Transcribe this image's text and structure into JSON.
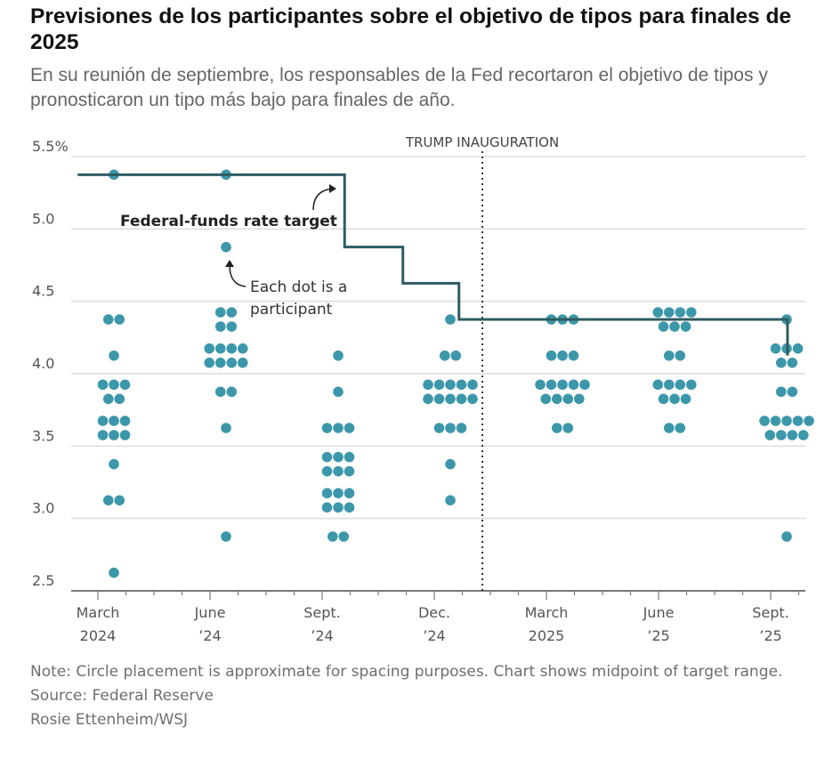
{
  "header": {
    "title": "Previsiones de los participantes sobre el objetivo de tipos para finales de 2025",
    "subtitle": "En su reunión de septiembre, los responsables de la Fed recortaron el objetivo de tipos y pronosticaron un tipo más bajo para finales de año."
  },
  "footer": {
    "note": "Note: Circle placement is approximate for spacing purposes. Chart shows midpoint of target range.",
    "source": "Source: Federal Reserve",
    "credit": "Rosie Ettenheim/WSJ"
  },
  "chart_data": {
    "type": "scatter",
    "ylim": [
      2.5,
      5.5
    ],
    "yticks": [
      {
        "value": 2.5,
        "label": "2.5"
      },
      {
        "value": 3.0,
        "label": "3.0"
      },
      {
        "value": 3.5,
        "label": "3.5"
      },
      {
        "value": 4.0,
        "label": "4.0"
      },
      {
        "value": 4.5,
        "label": "4.5"
      },
      {
        "value": 5.0,
        "label": "5.0"
      },
      {
        "value": 5.5,
        "label": "5.5%"
      }
    ],
    "meetings": [
      {
        "label": [
          "March",
          "2024"
        ],
        "dots": [
          5.375,
          4.375,
          4.375,
          4.125,
          3.875,
          3.875,
          3.875,
          3.875,
          3.875,
          3.625,
          3.625,
          3.625,
          3.625,
          3.625,
          3.625,
          3.375,
          3.125,
          3.125,
          2.625
        ]
      },
      {
        "label": [
          "June",
          "’24"
        ],
        "dots": [
          5.375,
          4.875,
          4.375,
          4.375,
          4.375,
          4.375,
          4.125,
          4.125,
          4.125,
          4.125,
          4.125,
          4.125,
          4.125,
          4.125,
          3.875,
          3.875,
          3.625,
          2.875
        ]
      },
      {
        "label": [
          "Sept.",
          "’24"
        ],
        "dots": [
          4.125,
          3.875,
          3.625,
          3.625,
          3.625,
          3.375,
          3.375,
          3.375,
          3.375,
          3.375,
          3.375,
          3.125,
          3.125,
          3.125,
          3.125,
          3.125,
          3.125,
          2.875,
          2.875
        ]
      },
      {
        "label": [
          "Dec.",
          "’24"
        ],
        "dots": [
          4.375,
          4.125,
          4.125,
          3.875,
          3.875,
          3.875,
          3.875,
          3.875,
          3.875,
          3.875,
          3.875,
          3.875,
          3.875,
          3.625,
          3.625,
          3.625,
          3.375,
          3.125
        ]
      },
      {
        "label": [
          "March",
          "2025"
        ],
        "dots": [
          4.375,
          4.375,
          4.375,
          4.125,
          4.125,
          4.125,
          3.875,
          3.875,
          3.875,
          3.875,
          3.875,
          3.875,
          3.875,
          3.875,
          3.875,
          3.625,
          3.625
        ]
      },
      {
        "label": [
          "June",
          "’25"
        ],
        "dots": [
          4.375,
          4.375,
          4.375,
          4.375,
          4.375,
          4.375,
          4.375,
          4.125,
          4.125,
          3.875,
          3.875,
          3.875,
          3.875,
          3.875,
          3.875,
          3.875,
          3.625,
          3.625
        ]
      },
      {
        "label": [
          "Sept.",
          "’25"
        ],
        "dots": [
          4.375,
          4.125,
          4.125,
          4.125,
          4.125,
          4.125,
          3.875,
          3.875,
          3.625,
          3.625,
          3.625,
          3.625,
          3.625,
          3.625,
          3.625,
          3.625,
          3.625,
          2.875
        ]
      }
    ],
    "rate_target": [
      {
        "x": -0.18,
        "y": 5.375
      },
      {
        "x": 2.2,
        "y": 5.375
      },
      {
        "x": 2.2,
        "y": 4.875
      },
      {
        "x": 2.72,
        "y": 4.875
      },
      {
        "x": 2.72,
        "y": 4.625
      },
      {
        "x": 3.22,
        "y": 4.625
      },
      {
        "x": 3.22,
        "y": 4.375
      },
      {
        "x": 6.15,
        "y": 4.375
      },
      {
        "x": 6.15,
        "y": 4.125
      }
    ],
    "annotations": {
      "rate_label": "Federal-funds rate target",
      "dot_label": [
        "Each dot is a",
        "participant"
      ],
      "event_label": "TRUMP INAUGURATION",
      "event_x": 3.5
    },
    "grid": true,
    "colors": {
      "dots": "#3d97aa",
      "line": "#2e5c63",
      "grid": "#dcdcdc",
      "axis": "#555555"
    }
  }
}
